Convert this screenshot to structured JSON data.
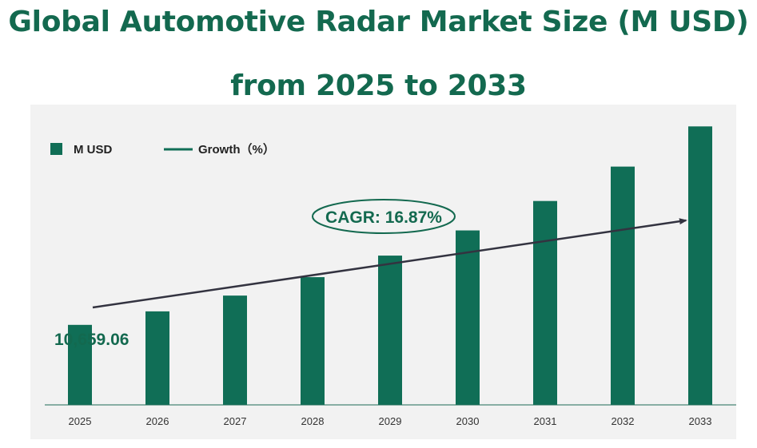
{
  "title_line1": "Global Automotive Radar Market Size (M USD)",
  "title_line2": "from 2025 to 2033",
  "colors": {
    "bar": "#106e56",
    "title": "#13694f",
    "arrow": "#333340",
    "panel": "#f2f2f2"
  },
  "chart_data": {
    "type": "bar",
    "categories": [
      "2025",
      "2026",
      "2027",
      "2028",
      "2029",
      "2030",
      "2031",
      "2032",
      "2033"
    ],
    "series": [
      {
        "name": "M USD",
        "values": [
          10659.06,
          12457,
          14559,
          17015,
          19886,
          23240,
          27161,
          31743,
          37097
        ]
      }
    ],
    "data_labels": [
      {
        "category": "2025",
        "text": "10,659.06"
      }
    ],
    "legend": {
      "placement": "top-left",
      "entries": [
        "M USD",
        "Growth（%）"
      ]
    },
    "annotation": "CAGR: 16.87%",
    "ylim": [
      0,
      40000
    ],
    "grid": false,
    "title": "Global Automotive Radar Market Size (M USD) from 2025 to 2033"
  }
}
